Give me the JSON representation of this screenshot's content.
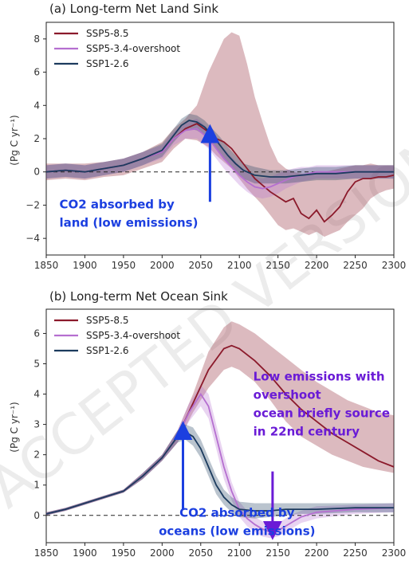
{
  "watermark": "ACCEPTED VERSION SUBJECT TO FINAL EDITS",
  "chart_data": [
    {
      "type": "line",
      "title": "(a) Long-term Net Land Sink",
      "ylabel": "(Pg C yr⁻¹)",
      "xlim": [
        1850,
        2300
      ],
      "ylim": [
        -5,
        9
      ],
      "xticks": [
        1850,
        1900,
        1950,
        2000,
        2050,
        2100,
        2150,
        2200,
        2250,
        2300
      ],
      "yticks": [
        -4,
        -2,
        0,
        2,
        4,
        6,
        8
      ],
      "zero_line": "dashed",
      "legend_position": "top-left",
      "series": [
        {
          "name": "SSP5-8.5",
          "color": "#8b1a2b",
          "x": [
            1850,
            1875,
            1900,
            1925,
            1950,
            1975,
            2000,
            2015,
            2030,
            2045,
            2060,
            2070,
            2080,
            2090,
            2100,
            2110,
            2120,
            2130,
            2140,
            2150,
            2160,
            2170,
            2180,
            2190,
            2200,
            2210,
            2220,
            2230,
            2240,
            2250,
            2260,
            2270,
            2280,
            2290,
            2300
          ],
          "y": [
            0,
            0.1,
            0,
            0.2,
            0.4,
            0.8,
            1.2,
            2.0,
            2.6,
            2.9,
            2.4,
            2.0,
            1.8,
            1.4,
            0.8,
            0.2,
            -0.4,
            -0.8,
            -1.2,
            -1.5,
            -1.8,
            -1.6,
            -2.5,
            -2.8,
            -2.3,
            -3.0,
            -2.6,
            -2.1,
            -1.2,
            -0.6,
            -0.4,
            -0.4,
            -0.3,
            -0.3,
            -0.2
          ],
          "lower": [
            -0.5,
            -0.4,
            -0.5,
            -0.3,
            -0.2,
            0.2,
            0.6,
            1.4,
            2.0,
            1.9,
            1.5,
            1.0,
            0.6,
            0.2,
            -0.4,
            -1.0,
            -1.5,
            -2.0,
            -2.6,
            -3.2,
            -3.5,
            -3.4,
            -3.6,
            -3.8,
            -3.6,
            -3.9,
            -3.7,
            -3.5,
            -3.0,
            -2.6,
            -2.2,
            -1.6,
            -1.3,
            -1.1,
            -1.0
          ],
          "upper": [
            0.5,
            0.5,
            0.5,
            0.6,
            0.8,
            1.2,
            1.8,
            2.6,
            3.2,
            4.0,
            6.0,
            7.0,
            8.0,
            8.4,
            8.2,
            6.5,
            4.5,
            3.0,
            1.6,
            0.6,
            0.2,
            0.0,
            -0.1,
            -0.2,
            -0.1,
            0.0,
            0.1,
            0.2,
            0.3,
            0.4,
            0.4,
            0.5,
            0.4,
            0.4,
            0.4
          ]
        },
        {
          "name": "SSP5-3.4-overshoot",
          "color": "#b56fd0",
          "x": [
            1850,
            1875,
            1900,
            1925,
            1950,
            1975,
            2000,
            2015,
            2030,
            2045,
            2060,
            2070,
            2080,
            2090,
            2100,
            2110,
            2120,
            2130,
            2140,
            2150,
            2160,
            2170,
            2180,
            2190,
            2200,
            2225,
            2250,
            2275,
            2300
          ],
          "y": [
            0,
            0.1,
            0,
            0.2,
            0.4,
            0.8,
            1.2,
            2.0,
            2.5,
            2.6,
            2.0,
            1.4,
            0.8,
            0.3,
            -0.2,
            -0.6,
            -0.9,
            -1.0,
            -0.9,
            -0.7,
            -0.5,
            -0.3,
            -0.2,
            -0.1,
            0,
            0,
            0,
            0,
            0
          ],
          "lower": [
            -0.4,
            -0.3,
            -0.4,
            -0.2,
            0.0,
            0.4,
            0.8,
            1.6,
            2.0,
            2.0,
            1.4,
            0.8,
            0.2,
            -0.3,
            -0.8,
            -1.2,
            -1.5,
            -1.6,
            -1.5,
            -1.3,
            -1.0,
            -0.8,
            -0.6,
            -0.5,
            -0.4,
            -0.4,
            -0.4,
            -0.4,
            -0.4
          ],
          "upper": [
            0.4,
            0.5,
            0.4,
            0.6,
            0.8,
            1.2,
            1.6,
            2.4,
            3.0,
            3.2,
            2.6,
            2.0,
            1.4,
            0.9,
            0.4,
            0.0,
            -0.3,
            -0.4,
            -0.3,
            -0.1,
            0.1,
            0.2,
            0.3,
            0.3,
            0.4,
            0.4,
            0.4,
            0.4,
            0.4
          ]
        },
        {
          "name": "SSP1-2.6",
          "color": "#1c3b5e",
          "x": [
            1850,
            1875,
            1900,
            1925,
            1950,
            1975,
            2000,
            2015,
            2025,
            2035,
            2045,
            2055,
            2065,
            2075,
            2085,
            2095,
            2105,
            2120,
            2140,
            2160,
            2180,
            2200,
            2225,
            2250,
            2275,
            2300
          ],
          "y": [
            0,
            0.1,
            0,
            0.2,
            0.4,
            0.8,
            1.3,
            2.2,
            2.8,
            3.1,
            3.0,
            2.7,
            2.2,
            1.6,
            1.0,
            0.5,
            0.1,
            -0.2,
            -0.3,
            -0.3,
            -0.2,
            -0.1,
            -0.1,
            0,
            0,
            0
          ],
          "lower": [
            -0.4,
            -0.3,
            -0.4,
            -0.2,
            0.0,
            0.4,
            0.9,
            1.8,
            2.3,
            2.6,
            2.5,
            2.2,
            1.7,
            1.1,
            0.5,
            0.0,
            -0.4,
            -0.7,
            -0.7,
            -0.7,
            -0.6,
            -0.5,
            -0.5,
            -0.4,
            -0.4,
            -0.4
          ],
          "upper": [
            0.4,
            0.5,
            0.4,
            0.6,
            0.8,
            1.2,
            1.7,
            2.6,
            3.2,
            3.5,
            3.4,
            3.1,
            2.6,
            2.1,
            1.5,
            1.0,
            0.5,
            0.3,
            0.1,
            0.1,
            0.2,
            0.3,
            0.3,
            0.4,
            0.4,
            0.4
          ]
        }
      ],
      "annotations": [
        {
          "lines": [
            "CO2 absorbed by",
            "land (low emissions)"
          ],
          "color": "#1b3fe0",
          "x": 1867,
          "y": -2.2,
          "arrow_from": [
            2062,
            -1.8
          ],
          "arrow_to": [
            2062,
            2.3
          ]
        }
      ]
    },
    {
      "type": "line",
      "title": "(b) Long-term Net Ocean Sink",
      "ylabel": "(Pg C yr⁻¹)",
      "xlim": [
        1850,
        2300
      ],
      "ylim": [
        -0.9,
        6.8
      ],
      "xticks": [
        1850,
        1900,
        1950,
        2000,
        2050,
        2100,
        2150,
        2200,
        2250,
        2300
      ],
      "yticks": [
        0,
        1,
        2,
        3,
        4,
        5,
        6
      ],
      "zero_line": "dashed",
      "legend_position": "top-left",
      "series": [
        {
          "name": "SSP5-8.5",
          "color": "#8b1a2b",
          "x": [
            1850,
            1875,
            1900,
            1925,
            1950,
            1975,
            2000,
            2020,
            2040,
            2060,
            2080,
            2090,
            2100,
            2120,
            2140,
            2160,
            2180,
            2200,
            2220,
            2240,
            2260,
            2280,
            2300
          ],
          "y": [
            0.05,
            0.2,
            0.4,
            0.6,
            0.8,
            1.3,
            1.9,
            2.6,
            3.7,
            4.8,
            5.5,
            5.6,
            5.5,
            5.1,
            4.6,
            4.0,
            3.5,
            3.1,
            2.7,
            2.4,
            2.1,
            1.8,
            1.6
          ],
          "lower": [
            0.0,
            0.15,
            0.35,
            0.55,
            0.75,
            1.2,
            1.8,
            2.4,
            3.4,
            4.2,
            4.8,
            4.9,
            4.8,
            4.4,
            3.8,
            3.1,
            2.6,
            2.3,
            2.0,
            1.8,
            1.6,
            1.5,
            1.4
          ],
          "upper": [
            0.1,
            0.25,
            0.45,
            0.65,
            0.85,
            1.4,
            2.0,
            2.8,
            4.0,
            5.4,
            6.2,
            6.4,
            6.3,
            6.0,
            5.6,
            5.2,
            4.8,
            4.4,
            4.1,
            3.8,
            3.6,
            3.4,
            3.3
          ]
        },
        {
          "name": "SSP5-3.4-overshoot",
          "color": "#b56fd0",
          "x": [
            1850,
            1875,
            1900,
            1925,
            1950,
            1975,
            2000,
            2020,
            2035,
            2050,
            2060,
            2070,
            2080,
            2090,
            2100,
            2110,
            2120,
            2130,
            2140,
            2150,
            2160,
            2170,
            2180,
            2200,
            2250,
            2300
          ],
          "y": [
            0.05,
            0.2,
            0.4,
            0.6,
            0.8,
            1.3,
            1.9,
            2.6,
            3.4,
            4.0,
            3.6,
            2.6,
            1.6,
            0.8,
            0.2,
            -0.1,
            -0.3,
            -0.45,
            -0.55,
            -0.5,
            -0.35,
            -0.2,
            -0.05,
            0.1,
            0.2,
            0.25
          ],
          "lower": [
            0.0,
            0.15,
            0.35,
            0.55,
            0.75,
            1.2,
            1.8,
            2.4,
            3.1,
            3.6,
            3.2,
            2.2,
            1.2,
            0.5,
            -0.05,
            -0.35,
            -0.55,
            -0.7,
            -0.75,
            -0.7,
            -0.55,
            -0.4,
            -0.25,
            -0.1,
            0.05,
            0.1
          ],
          "upper": [
            0.1,
            0.25,
            0.45,
            0.65,
            0.85,
            1.4,
            2.0,
            2.8,
            3.7,
            4.3,
            4.0,
            3.0,
            2.0,
            1.1,
            0.45,
            0.15,
            -0.05,
            -0.2,
            -0.3,
            -0.25,
            -0.1,
            0.05,
            0.15,
            0.3,
            0.35,
            0.4
          ]
        },
        {
          "name": "SSP1-2.6",
          "color": "#1c3b5e",
          "x": [
            1850,
            1875,
            1900,
            1925,
            1950,
            1975,
            2000,
            2020,
            2030,
            2040,
            2050,
            2060,
            2070,
            2080,
            2090,
            2100,
            2120,
            2140,
            2160,
            2180,
            2200,
            2250,
            2300
          ],
          "y": [
            0.05,
            0.2,
            0.4,
            0.6,
            0.8,
            1.3,
            1.9,
            2.6,
            2.75,
            2.6,
            2.2,
            1.6,
            1.0,
            0.6,
            0.35,
            0.2,
            0.15,
            0.15,
            0.2,
            0.2,
            0.2,
            0.25,
            0.25
          ],
          "lower": [
            0.0,
            0.15,
            0.35,
            0.55,
            0.75,
            1.2,
            1.8,
            2.4,
            2.5,
            2.3,
            1.9,
            1.3,
            0.7,
            0.35,
            0.1,
            -0.05,
            -0.1,
            -0.05,
            0.0,
            0.05,
            0.05,
            0.1,
            0.1
          ],
          "upper": [
            0.1,
            0.25,
            0.45,
            0.65,
            0.85,
            1.4,
            2.0,
            2.8,
            3.0,
            2.9,
            2.5,
            1.9,
            1.3,
            0.85,
            0.6,
            0.45,
            0.4,
            0.4,
            0.4,
            0.4,
            0.4,
            0.4,
            0.4
          ]
        }
      ],
      "annotations": [
        {
          "lines": [
            "Low emissions with",
            "overshoot",
            "ocean briefly source",
            "in 22nd century"
          ],
          "color": "#6a1bd6",
          "x": 2118,
          "y": 4.45,
          "arrow_from": [
            2143,
            1.45
          ],
          "arrow_to": [
            2143,
            -0.5
          ]
        },
        {
          "lines": [
            "CO2 absorbed by",
            "oceans (low emissions)"
          ],
          "color": "#1b3fe0",
          "x": 2097,
          "y": -0.05,
          "anchor": "middle",
          "arrow_from": [
            2027,
            0.2
          ],
          "arrow_to": [
            2027,
            2.8
          ]
        }
      ]
    }
  ]
}
